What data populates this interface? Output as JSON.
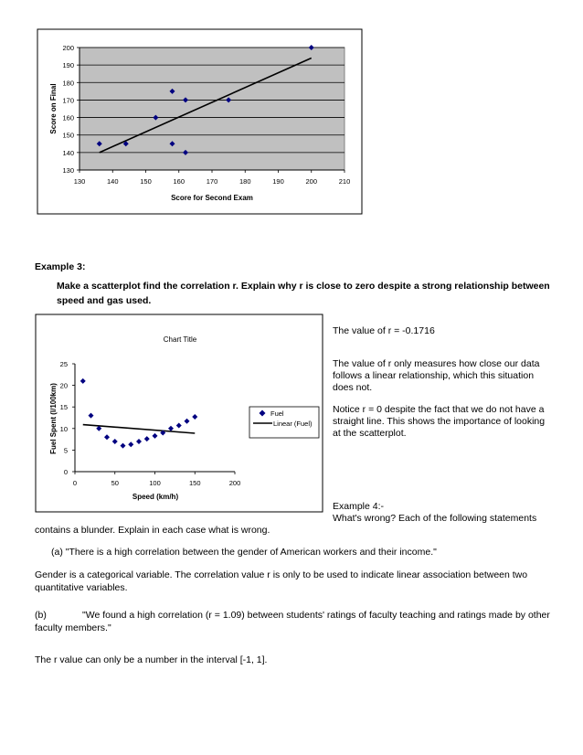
{
  "chart_data": [
    {
      "type": "scatter",
      "title": "",
      "xlabel": "Score for Second Exam",
      "ylabel": "Score on Final",
      "xlim": [
        130,
        210
      ],
      "ylim": [
        130,
        200
      ],
      "x_ticks": [
        130,
        140,
        150,
        160,
        170,
        180,
        190,
        200,
        210
      ],
      "y_ticks": [
        130,
        140,
        150,
        160,
        170,
        180,
        190,
        200
      ],
      "grid": true,
      "points": [
        {
          "x": 136,
          "y": 145
        },
        {
          "x": 144,
          "y": 145
        },
        {
          "x": 153,
          "y": 160
        },
        {
          "x": 158,
          "y": 175
        },
        {
          "x": 158,
          "y": 145
        },
        {
          "x": 162,
          "y": 170
        },
        {
          "x": 162,
          "y": 140
        },
        {
          "x": 175,
          "y": 170
        },
        {
          "x": 200,
          "y": 200
        }
      ],
      "trendline": [
        {
          "x": 136,
          "y": 140
        },
        {
          "x": 200,
          "y": 194
        }
      ]
    },
    {
      "type": "scatter",
      "title": "Chart Title",
      "xlabel": "Speed (km/h)",
      "ylabel": "Fuel Spent (l/100km)",
      "xlim": [
        0,
        200
      ],
      "ylim": [
        0,
        25
      ],
      "x_ticks": [
        0,
        50,
        100,
        150,
        200
      ],
      "y_ticks": [
        0,
        5,
        10,
        15,
        20,
        25
      ],
      "grid": false,
      "legend_position": "right",
      "series": [
        {
          "name": "Fuel",
          "points": [
            {
              "x": 10,
              "y": 21
            },
            {
              "x": 20,
              "y": 13
            },
            {
              "x": 30,
              "y": 10
            },
            {
              "x": 40,
              "y": 8
            },
            {
              "x": 50,
              "y": 7
            },
            {
              "x": 60,
              "y": 6
            },
            {
              "x": 70,
              "y": 6.3
            },
            {
              "x": 80,
              "y": 7
            },
            {
              "x": 90,
              "y": 7.6
            },
            {
              "x": 100,
              "y": 8.3
            },
            {
              "x": 110,
              "y": 9
            },
            {
              "x": 120,
              "y": 10
            },
            {
              "x": 130,
              "y": 10.7
            },
            {
              "x": 140,
              "y": 11.7
            },
            {
              "x": 150,
              "y": 12.7
            }
          ]
        },
        {
          "name": "Linear (Fuel)",
          "line": [
            {
              "x": 10,
              "y": 10.9
            },
            {
              "x": 150,
              "y": 8.9
            }
          ]
        }
      ]
    }
  ],
  "example3": {
    "heading": "Example 3:",
    "prompt_line1": "Make a scatterplot  find the correlation r. Explain why r is close to zero despite a strong relationship between",
    "prompt_line2": "speed and gas used."
  },
  "side_text": {
    "r_value": "The value of r = -0.1716",
    "para1_l1": "The value of r only measures how close our data",
    "para1_l2": "follows a linear relationship, which this situation",
    "para1_l3": "does not.",
    "para2_l1": "Notice r = 0 despite the fact that we do not have a",
    "para2_l2": "straight line.  This shows the importance of looking",
    "para2_l3": "at the scatterplot.",
    "example4_l1": "Example 4:-",
    "example4_l2": "What's wrong? Each of the following statements"
  },
  "body_text": {
    "contains": "contains a blunder. Explain in each case what is wrong.",
    "item_a": "(a)  \"There is a high correlation between the gender of American workers and their income.\"",
    "gender_l1": "Gender is a categorical variable.  The correlation value r is only to be used to indicate linear association between two",
    "gender_l2": "quantitative variables.",
    "item_b_label": "(b)",
    "item_b_l1": "\"We found a high correlation (r = 1.09) between students' ratings of faculty teaching and ratings made by other",
    "item_b_l2": "faculty members.\"",
    "r_interval": "The r value can only be a number in the interval [-1, 1]."
  }
}
